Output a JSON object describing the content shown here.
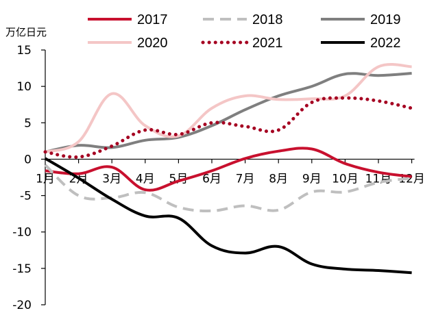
{
  "chart_data": {
    "type": "line",
    "ylabel": "万亿日元",
    "categories": [
      "1月",
      "2月",
      "3月",
      "4月",
      "5月",
      "6月",
      "7月",
      "8月",
      "9月",
      "10月",
      "11月",
      "12月"
    ],
    "ylim": [
      -20,
      15
    ],
    "yticks": [
      15,
      10,
      5,
      0,
      -5,
      -10,
      -15,
      -20
    ],
    "grid": false,
    "legend_position": "top",
    "series": [
      {
        "name": "2017",
        "color": "#c8102e",
        "style": "solid",
        "values": [
          -1.6,
          -2.0,
          -1.1,
          -4.2,
          -3.0,
          -1.6,
          0.1,
          1.1,
          1.4,
          -0.6,
          -1.8,
          -2.4
        ]
      },
      {
        "name": "2018",
        "color": "#bfbfbf",
        "style": "dashed",
        "values": [
          -0.8,
          -5.0,
          -5.3,
          -4.6,
          -6.6,
          -7.1,
          -6.4,
          -7.0,
          -4.5,
          -4.5,
          -3.2,
          -2.6
        ]
      },
      {
        "name": "2019",
        "color": "#7f7f7f",
        "style": "solid",
        "values": [
          1.0,
          1.9,
          1.6,
          2.6,
          3.0,
          4.6,
          6.8,
          8.7,
          10.0,
          11.7,
          11.5,
          11.8
        ]
      },
      {
        "name": "2020",
        "color": "#f4c6c6",
        "style": "solid",
        "values": [
          1.0,
          2.4,
          9.0,
          4.6,
          3.2,
          7.0,
          8.7,
          8.2,
          8.3,
          8.7,
          12.7,
          12.7
        ]
      },
      {
        "name": "2021",
        "color": "#a50021",
        "style": "dotted",
        "values": [
          1.0,
          0.3,
          1.8,
          4.0,
          3.4,
          5.0,
          4.5,
          4.0,
          7.8,
          8.4,
          8.0,
          7.0
        ]
      },
      {
        "name": "2022",
        "color": "#000000",
        "style": "solid",
        "values": [
          0.1,
          -2.6,
          -5.5,
          -7.8,
          -8.1,
          -11.9,
          -12.9,
          -12.0,
          -14.4,
          -15.1,
          -15.3,
          -15.6
        ]
      }
    ]
  }
}
